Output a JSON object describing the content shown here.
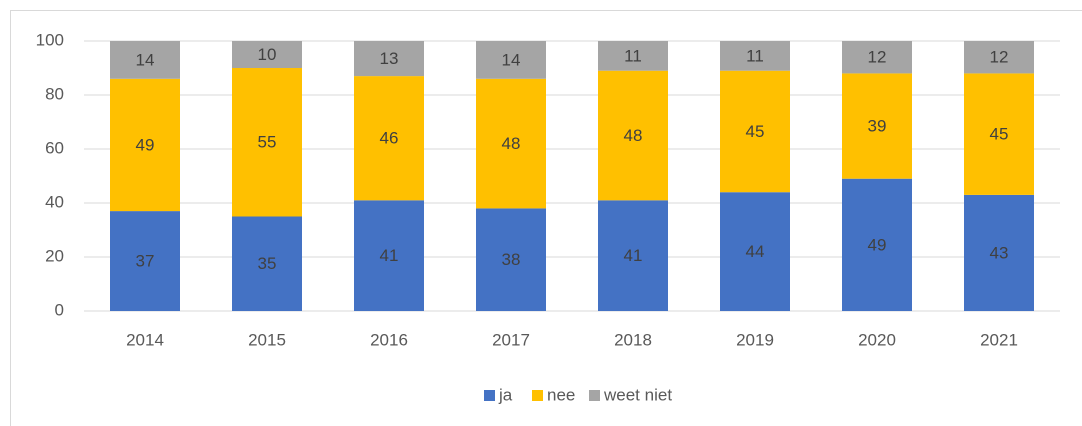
{
  "chart_data": {
    "type": "bar",
    "stacked": true,
    "categories": [
      "2014",
      "2015",
      "2016",
      "2017",
      "2018",
      "2019",
      "2020",
      "2021"
    ],
    "series": [
      {
        "name": "ja",
        "color": "#4472c4",
        "values": [
          37,
          35,
          41,
          38,
          41,
          44,
          49,
          43
        ]
      },
      {
        "name": "nee",
        "color": "#ffc000",
        "values": [
          49,
          55,
          46,
          48,
          48,
          45,
          39,
          45
        ]
      },
      {
        "name": "weet niet",
        "color": "#a5a5a5",
        "values": [
          14,
          10,
          13,
          14,
          11,
          11,
          12,
          12
        ]
      }
    ],
    "ylim": [
      0,
      100
    ],
    "yticks": [
      0,
      20,
      40,
      60,
      80,
      100
    ],
    "grid": true,
    "legend": "bottom"
  }
}
